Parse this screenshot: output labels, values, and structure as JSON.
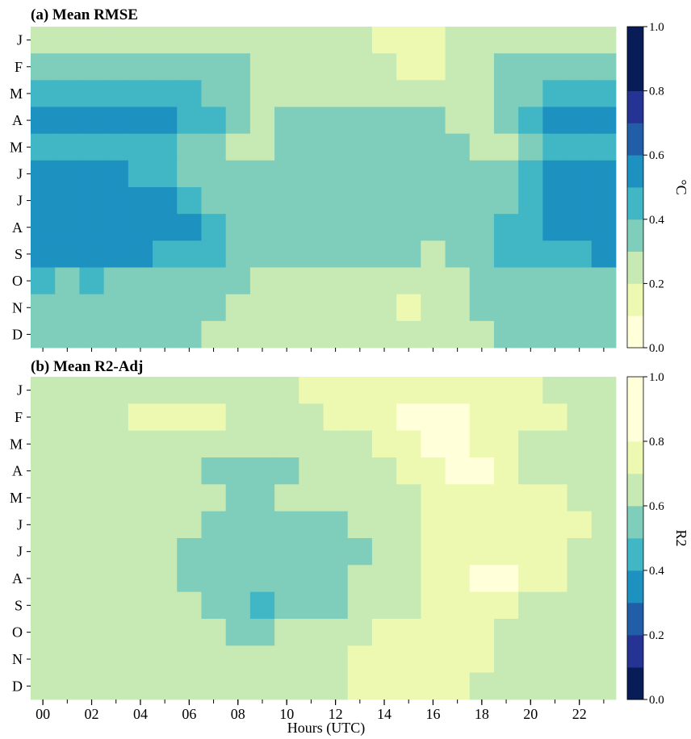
{
  "xlabel": "Hours (UTC)",
  "x_tick_labels": [
    "00",
    "02",
    "04",
    "06",
    "08",
    "10",
    "12",
    "14",
    "16",
    "18",
    "20",
    "22"
  ],
  "palette": [
    "#ffffd9",
    "#edf8b1",
    "#c7e9b4",
    "#7fcdbb",
    "#41b6c4",
    "#1d91c0",
    "#225ea8",
    "#253494",
    "#081d58"
  ],
  "chart_data": [
    {
      "type": "heatmap",
      "title": "(a) Mean RMSE",
      "rows": [
        "J",
        "F",
        "M",
        "A",
        "M",
        "J",
        "J",
        "A",
        "S",
        "O",
        "N",
        "D"
      ],
      "columns": [
        "00",
        "01",
        "02",
        "03",
        "04",
        "05",
        "06",
        "07",
        "08",
        "09",
        "10",
        "11",
        "12",
        "13",
        "14",
        "15",
        "16",
        "17",
        "18",
        "19",
        "20",
        "21",
        "22",
        "23"
      ],
      "colorbar": {
        "label": "°C",
        "min": 0.0,
        "max": 1.0,
        "step": 0.1,
        "ticks": [
          "0.0",
          "0.2",
          "0.4",
          "0.6",
          "0.8",
          "1.0"
        ],
        "reverse": false
      },
      "values": [
        [
          0.25,
          0.25,
          0.25,
          0.25,
          0.25,
          0.25,
          0.25,
          0.25,
          0.25,
          0.25,
          0.25,
          0.25,
          0.25,
          0.25,
          0.15,
          0.15,
          0.15,
          0.25,
          0.25,
          0.25,
          0.25,
          0.25,
          0.25,
          0.25
        ],
        [
          0.35,
          0.35,
          0.35,
          0.35,
          0.35,
          0.35,
          0.35,
          0.35,
          0.35,
          0.25,
          0.25,
          0.25,
          0.25,
          0.25,
          0.25,
          0.15,
          0.15,
          0.25,
          0.25,
          0.35,
          0.35,
          0.35,
          0.35,
          0.35
        ],
        [
          0.45,
          0.45,
          0.45,
          0.45,
          0.45,
          0.45,
          0.45,
          0.35,
          0.35,
          0.25,
          0.25,
          0.25,
          0.25,
          0.25,
          0.25,
          0.25,
          0.25,
          0.25,
          0.25,
          0.35,
          0.35,
          0.45,
          0.45,
          0.45
        ],
        [
          0.55,
          0.55,
          0.55,
          0.55,
          0.55,
          0.55,
          0.45,
          0.45,
          0.35,
          0.25,
          0.35,
          0.35,
          0.35,
          0.35,
          0.35,
          0.35,
          0.35,
          0.25,
          0.25,
          0.35,
          0.45,
          0.55,
          0.55,
          0.55
        ],
        [
          0.45,
          0.45,
          0.45,
          0.45,
          0.45,
          0.45,
          0.35,
          0.35,
          0.25,
          0.25,
          0.35,
          0.35,
          0.35,
          0.35,
          0.35,
          0.35,
          0.35,
          0.35,
          0.25,
          0.25,
          0.35,
          0.45,
          0.45,
          0.45
        ],
        [
          0.55,
          0.55,
          0.55,
          0.55,
          0.45,
          0.45,
          0.35,
          0.35,
          0.35,
          0.35,
          0.35,
          0.35,
          0.35,
          0.35,
          0.35,
          0.35,
          0.35,
          0.35,
          0.35,
          0.35,
          0.45,
          0.55,
          0.55,
          0.55
        ],
        [
          0.55,
          0.55,
          0.55,
          0.55,
          0.55,
          0.55,
          0.45,
          0.35,
          0.35,
          0.35,
          0.35,
          0.35,
          0.35,
          0.35,
          0.35,
          0.35,
          0.35,
          0.35,
          0.35,
          0.35,
          0.45,
          0.55,
          0.55,
          0.55
        ],
        [
          0.55,
          0.55,
          0.55,
          0.55,
          0.55,
          0.55,
          0.55,
          0.45,
          0.35,
          0.35,
          0.35,
          0.35,
          0.35,
          0.35,
          0.35,
          0.35,
          0.35,
          0.35,
          0.35,
          0.45,
          0.45,
          0.55,
          0.55,
          0.55
        ],
        [
          0.55,
          0.55,
          0.55,
          0.55,
          0.55,
          0.45,
          0.45,
          0.45,
          0.35,
          0.35,
          0.35,
          0.35,
          0.35,
          0.35,
          0.35,
          0.35,
          0.25,
          0.35,
          0.35,
          0.45,
          0.45,
          0.45,
          0.45,
          0.55
        ],
        [
          0.45,
          0.35,
          0.45,
          0.35,
          0.35,
          0.35,
          0.35,
          0.35,
          0.35,
          0.25,
          0.25,
          0.25,
          0.25,
          0.25,
          0.25,
          0.25,
          0.25,
          0.25,
          0.35,
          0.35,
          0.35,
          0.35,
          0.35,
          0.35
        ],
        [
          0.35,
          0.35,
          0.35,
          0.35,
          0.35,
          0.35,
          0.35,
          0.35,
          0.25,
          0.25,
          0.25,
          0.25,
          0.25,
          0.25,
          0.25,
          0.15,
          0.25,
          0.25,
          0.35,
          0.35,
          0.35,
          0.35,
          0.35,
          0.35
        ],
        [
          0.35,
          0.35,
          0.35,
          0.35,
          0.35,
          0.35,
          0.35,
          0.25,
          0.25,
          0.25,
          0.25,
          0.25,
          0.25,
          0.25,
          0.25,
          0.25,
          0.25,
          0.25,
          0.25,
          0.35,
          0.35,
          0.35,
          0.35,
          0.35
        ]
      ]
    },
    {
      "type": "heatmap",
      "title": "(b) Mean R2-Adj",
      "rows": [
        "J",
        "F",
        "M",
        "A",
        "M",
        "J",
        "J",
        "A",
        "S",
        "O",
        "N",
        "D"
      ],
      "columns": [
        "00",
        "01",
        "02",
        "03",
        "04",
        "05",
        "06",
        "07",
        "08",
        "09",
        "10",
        "11",
        "12",
        "13",
        "14",
        "15",
        "16",
        "17",
        "18",
        "19",
        "20",
        "21",
        "22",
        "23"
      ],
      "colorbar": {
        "label": "R2",
        "min": 0.0,
        "max": 1.0,
        "step": 0.1,
        "ticks": [
          "0.0",
          "0.2",
          "0.4",
          "0.6",
          "0.8",
          "1.0"
        ],
        "reverse": true
      },
      "values": [
        [
          0.65,
          0.65,
          0.65,
          0.65,
          0.65,
          0.65,
          0.65,
          0.65,
          0.65,
          0.65,
          0.65,
          0.75,
          0.75,
          0.75,
          0.75,
          0.75,
          0.75,
          0.75,
          0.75,
          0.75,
          0.75,
          0.65,
          0.65,
          0.65
        ],
        [
          0.65,
          0.65,
          0.65,
          0.65,
          0.75,
          0.75,
          0.75,
          0.75,
          0.65,
          0.65,
          0.65,
          0.65,
          0.75,
          0.75,
          0.75,
          0.85,
          0.85,
          0.85,
          0.75,
          0.75,
          0.75,
          0.75,
          0.65,
          0.65
        ],
        [
          0.65,
          0.65,
          0.65,
          0.65,
          0.65,
          0.65,
          0.65,
          0.65,
          0.65,
          0.65,
          0.65,
          0.65,
          0.65,
          0.65,
          0.75,
          0.75,
          0.85,
          0.85,
          0.75,
          0.75,
          0.65,
          0.65,
          0.65,
          0.65
        ],
        [
          0.65,
          0.65,
          0.65,
          0.65,
          0.65,
          0.65,
          0.65,
          0.55,
          0.55,
          0.55,
          0.55,
          0.65,
          0.65,
          0.65,
          0.65,
          0.75,
          0.75,
          0.85,
          0.85,
          0.75,
          0.65,
          0.65,
          0.65,
          0.65
        ],
        [
          0.65,
          0.65,
          0.65,
          0.65,
          0.65,
          0.65,
          0.65,
          0.65,
          0.55,
          0.55,
          0.65,
          0.65,
          0.65,
          0.65,
          0.65,
          0.65,
          0.75,
          0.75,
          0.75,
          0.75,
          0.75,
          0.75,
          0.65,
          0.65
        ],
        [
          0.65,
          0.65,
          0.65,
          0.65,
          0.65,
          0.65,
          0.65,
          0.55,
          0.55,
          0.55,
          0.55,
          0.55,
          0.55,
          0.65,
          0.65,
          0.65,
          0.75,
          0.75,
          0.75,
          0.75,
          0.75,
          0.75,
          0.75,
          0.65
        ],
        [
          0.65,
          0.65,
          0.65,
          0.65,
          0.65,
          0.65,
          0.55,
          0.55,
          0.55,
          0.55,
          0.55,
          0.55,
          0.55,
          0.55,
          0.65,
          0.65,
          0.75,
          0.75,
          0.75,
          0.75,
          0.75,
          0.75,
          0.65,
          0.65
        ],
        [
          0.65,
          0.65,
          0.65,
          0.65,
          0.65,
          0.65,
          0.55,
          0.55,
          0.55,
          0.55,
          0.55,
          0.55,
          0.55,
          0.65,
          0.65,
          0.65,
          0.75,
          0.75,
          0.85,
          0.85,
          0.75,
          0.75,
          0.65,
          0.65
        ],
        [
          0.65,
          0.65,
          0.65,
          0.65,
          0.65,
          0.65,
          0.65,
          0.55,
          0.55,
          0.45,
          0.55,
          0.55,
          0.55,
          0.65,
          0.65,
          0.65,
          0.75,
          0.75,
          0.75,
          0.75,
          0.65,
          0.65,
          0.65,
          0.65
        ],
        [
          0.65,
          0.65,
          0.65,
          0.65,
          0.65,
          0.65,
          0.65,
          0.65,
          0.55,
          0.55,
          0.65,
          0.65,
          0.65,
          0.65,
          0.75,
          0.75,
          0.75,
          0.75,
          0.75,
          0.65,
          0.65,
          0.65,
          0.65,
          0.65
        ],
        [
          0.65,
          0.65,
          0.65,
          0.65,
          0.65,
          0.65,
          0.65,
          0.65,
          0.65,
          0.65,
          0.65,
          0.65,
          0.65,
          0.75,
          0.75,
          0.75,
          0.75,
          0.75,
          0.75,
          0.65,
          0.65,
          0.65,
          0.65,
          0.65
        ],
        [
          0.65,
          0.65,
          0.65,
          0.65,
          0.65,
          0.65,
          0.65,
          0.65,
          0.65,
          0.65,
          0.65,
          0.65,
          0.65,
          0.75,
          0.75,
          0.75,
          0.75,
          0.75,
          0.65,
          0.65,
          0.65,
          0.65,
          0.65,
          0.65
        ]
      ]
    }
  ]
}
